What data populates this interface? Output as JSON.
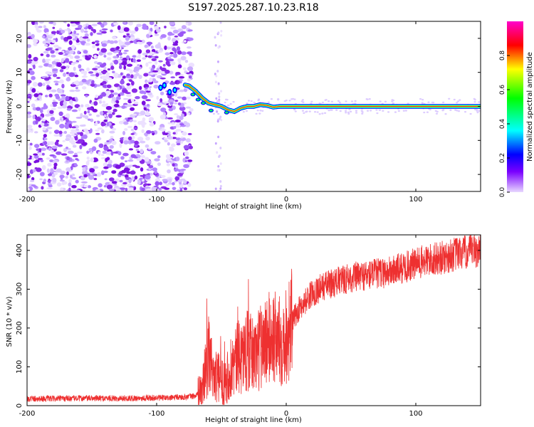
{
  "title": "S197.2025.287.10.23.R18",
  "chart_data": [
    {
      "type": "heatmap",
      "xlabel": "Height of straight line (km)",
      "ylabel": "Frequency (Hz)",
      "xlim": [
        -200,
        150
      ],
      "ylim": [
        -25,
        25
      ],
      "xticks": [
        -200,
        -100,
        0,
        100
      ],
      "yticks": [
        -20,
        -10,
        0,
        10,
        20
      ],
      "colorbar": {
        "label": "Normalized spectral amplitude",
        "range": [
          0,
          1
        ],
        "ticks": [
          "0.0",
          "0.2",
          "0.4",
          "0.6",
          "0.8"
        ],
        "tick_values": [
          0,
          0.2,
          0.4,
          0.6,
          0.8
        ],
        "colors": [
          "#e8d8ff",
          "#7a00ff",
          "#0000ff",
          "#00ffff",
          "#00ff00",
          "#ffff00",
          "#ff0000",
          "#ff00cc"
        ]
      },
      "ridge": {
        "heights": [
          -97,
          -90,
          -85,
          -80,
          -75,
          -70,
          -65,
          -60,
          -55,
          -50,
          -45,
          -40,
          -35,
          -30,
          -25,
          -20,
          -15,
          -10,
          -5,
          0,
          10,
          20,
          50,
          100,
          150
        ],
        "frequencies": [
          5.5,
          4.5,
          6.0,
          6.5,
          6.0,
          4.5,
          2.5,
          1.0,
          0.5,
          0.0,
          -1.0,
          -1.5,
          -0.5,
          0.0,
          0.0,
          0.5,
          0.3,
          -0.2,
          0.0,
          0.0,
          0.0,
          0.0,
          0.0,
          0.0,
          0.0
        ]
      }
    },
    {
      "type": "line",
      "xlabel": "Height of straight line (km)",
      "ylabel": "SNR (10 * v/v)",
      "xlim": [
        -200,
        150
      ],
      "ylim": [
        0,
        440
      ],
      "xticks": [
        -200,
        -100,
        0,
        100
      ],
      "yticks": [
        0,
        100,
        200,
        300,
        400
      ],
      "series": [
        {
          "name": "SNR",
          "color": "#ee3030",
          "x": [
            -200,
            -180,
            -160,
            -140,
            -120,
            -100,
            -90,
            -80,
            -70,
            -65,
            -60,
            -55,
            -50,
            -45,
            -40,
            -35,
            -30,
            -25,
            -20,
            -15,
            -10,
            -5,
            0,
            5,
            10,
            15,
            20,
            25,
            30,
            40,
            50,
            60,
            70,
            80,
            90,
            100,
            110,
            120,
            130,
            140,
            150
          ],
          "y": [
            18,
            18,
            19,
            19,
            19,
            20,
            20,
            22,
            25,
            40,
            130,
            80,
            60,
            80,
            110,
            130,
            140,
            130,
            150,
            170,
            175,
            165,
            185,
            220,
            250,
            270,
            290,
            300,
            310,
            320,
            330,
            335,
            340,
            345,
            355,
            365,
            375,
            380,
            390,
            395,
            400
          ]
        }
      ]
    }
  ]
}
